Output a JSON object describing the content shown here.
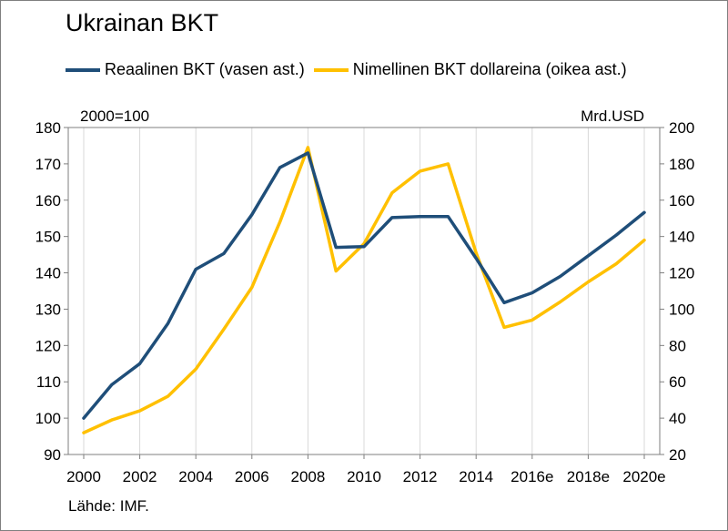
{
  "chart_data": {
    "type": "line",
    "title": "Ukrainan BKT",
    "left_unit": "2000=100",
    "right_unit": "Mrd.USD",
    "source": "Lähde: IMF.",
    "x": [
      2000,
      2001,
      2002,
      2003,
      2004,
      2005,
      2006,
      2007,
      2008,
      2009,
      2010,
      2011,
      2012,
      2013,
      2014,
      2015,
      2016,
      2017,
      2018,
      2019,
      2020
    ],
    "x_tick_labels": [
      "2000",
      "2002",
      "2004",
      "2006",
      "2008",
      "2010",
      "2012",
      "2014",
      "2016e",
      "2018e",
      "2020e"
    ],
    "left_axis": {
      "ylim": [
        90,
        180
      ],
      "ticks": [
        90,
        100,
        110,
        120,
        130,
        140,
        150,
        160,
        170,
        180
      ]
    },
    "right_axis": {
      "ylim": [
        20,
        200
      ],
      "ticks": [
        20,
        40,
        60,
        80,
        100,
        120,
        140,
        160,
        180,
        200
      ]
    },
    "grid": "vertical",
    "legend_position": "top",
    "series": [
      {
        "name": "Reaalinen BKT (vasen ast.)",
        "axis": "left",
        "color": "#1f4e79",
        "values": [
          100,
          109.2,
          115,
          126,
          141,
          145.3,
          156,
          169,
          173,
          147,
          147.2,
          155.2,
          155.5,
          155.5,
          144,
          131.8,
          134.5,
          139,
          144.7,
          150.4,
          156.6
        ]
      },
      {
        "name": "Nimellinen BKT dollareina (oikea ast.)",
        "axis": "right",
        "color": "#ffc000",
        "values": [
          32,
          39,
          44,
          52,
          67,
          89,
          112,
          148,
          189,
          121,
          136,
          164,
          176,
          180,
          131,
          90,
          94,
          104,
          115,
          125,
          138
        ]
      }
    ]
  }
}
